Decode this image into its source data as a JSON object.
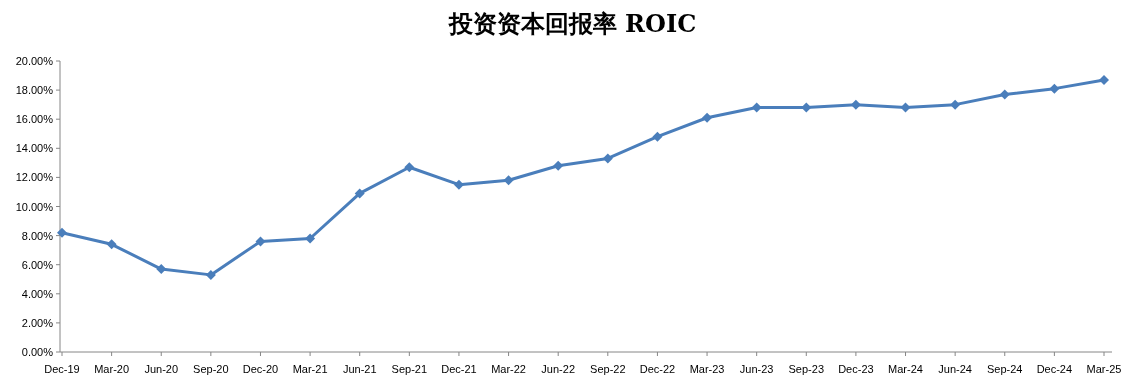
{
  "chart_data": {
    "type": "line",
    "title": "投资资本回报率 ROIC",
    "categories": [
      "Dec-19",
      "Mar-20",
      "Jun-20",
      "Sep-20",
      "Dec-20",
      "Mar-21",
      "Jun-21",
      "Sep-21",
      "Dec-21",
      "Mar-22",
      "Jun-22",
      "Sep-22",
      "Dec-22",
      "Mar-23",
      "Jun-23",
      "Sep-23",
      "Dec-23",
      "Mar-24",
      "Jun-24",
      "Sep-24",
      "Dec-24",
      "Mar-25"
    ],
    "series": [
      {
        "color": "#4a7ebb",
        "values": [
          8.2,
          7.4,
          5.7,
          5.3,
          7.6,
          7.8,
          10.9,
          12.7,
          11.5,
          11.8,
          12.8,
          13.3,
          14.8,
          16.1,
          16.8,
          16.8,
          17.0,
          16.8,
          17.0,
          17.7,
          18.1,
          18.7
        ]
      }
    ],
    "ylim": [
      0,
      20
    ],
    "yticks": [
      {
        "value": 0,
        "label": "0.00%"
      },
      {
        "value": 2,
        "label": "2.00%"
      },
      {
        "value": 4,
        "label": "4.00%"
      },
      {
        "value": 6,
        "label": "6.00%"
      },
      {
        "value": 8,
        "label": "8.00%"
      },
      {
        "value": 10,
        "label": "10.00%"
      },
      {
        "value": 12,
        "label": "12.00%"
      },
      {
        "value": 14,
        "label": "14.00%"
      },
      {
        "value": 16,
        "label": "16.00%"
      },
      {
        "value": 18,
        "label": "18.00%"
      },
      {
        "value": 20,
        "label": "20.00%"
      }
    ],
    "marker": "diamond",
    "line_style": "solid",
    "grid": false
  }
}
